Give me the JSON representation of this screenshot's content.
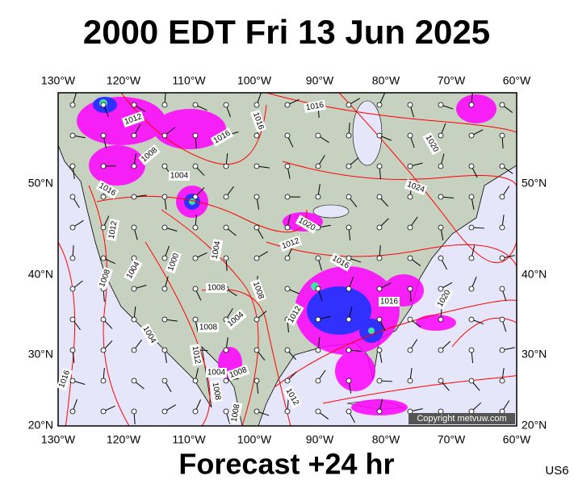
{
  "header": {
    "title": "2000 EDT Fri 13 Jun 2025"
  },
  "map": {
    "lon_labels": [
      "130°W",
      "120°W",
      "110°W",
      "100°W",
      "90°W",
      "80°W",
      "70°W",
      "60°W"
    ],
    "lat_labels": [
      "50°N",
      "40°N",
      "30°N",
      "20°N"
    ],
    "isobar_labels": [
      "1012",
      "1016",
      "1016",
      "1016",
      "1020",
      "1008",
      "1004",
      "1016",
      "1024",
      "1020",
      "1012",
      "1012",
      "1000",
      "1004",
      "1016",
      "1004",
      "1008",
      "1008",
      "1008",
      "1020",
      "1012",
      "1016",
      "1004",
      "1008",
      "1004",
      "1012",
      "1004",
      "1008",
      "1016",
      "1008",
      "1012",
      "1008"
    ],
    "copyright": "Copyright metvuw.com"
  },
  "footer": {
    "forecast": "Forecast +24 hr",
    "region": "US6"
  }
}
